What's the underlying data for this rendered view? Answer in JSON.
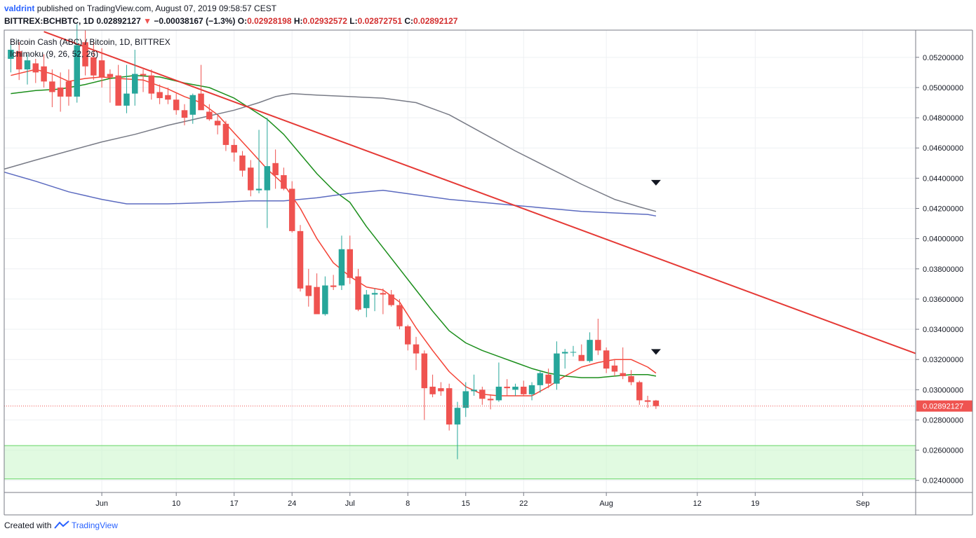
{
  "header": {
    "author": "valdrint",
    "published": "published on TradingView.com, August 07, 2019 09:58:57 CEST"
  },
  "quote": {
    "symbol": "BITTREX:BCHBTC, 1D",
    "last": "0.02892127",
    "change": "−0.00038167 (−1.3%)",
    "o_label": "O:",
    "o": "0.02928198",
    "h_label": "H:",
    "h": "0.02932572",
    "l_label": "L:",
    "l": "0.02872751",
    "c_label": "C:",
    "c": "0.02892127"
  },
  "legend": {
    "line1": "Bitcoin Cash (ABC) / Bitcoin, 1D, BITTREX",
    "line2": "Ichimoku (9, 26, 52, 26)"
  },
  "footer": {
    "created": "Created with",
    "brand": "TradingView"
  },
  "chart_data": {
    "type": "candlestick",
    "y_axis": {
      "range": [
        0.0232,
        0.0538
      ],
      "ticks": [
        "0.02400000",
        "0.02600000",
        "0.02800000",
        "0.03000000",
        "0.03200000",
        "0.03400000",
        "0.03600000",
        "0.03800000",
        "0.04000000",
        "0.04200000",
        "0.04400000",
        "0.04600000",
        "0.04800000",
        "0.05000000",
        "0.05200000"
      ],
      "last_price_label": "0.02892127"
    },
    "x_axis": {
      "tick_labels": [
        {
          "label": "Jun",
          "day": 0
        },
        {
          "label": "10",
          "day": 9
        },
        {
          "label": "17",
          "day": 16
        },
        {
          "label": "24",
          "day": 23
        },
        {
          "label": "Jul",
          "day": 30
        },
        {
          "label": "8",
          "day": 37
        },
        {
          "label": "15",
          "day": 44
        },
        {
          "label": "22",
          "day": 51
        },
        {
          "label": "Aug",
          "day": 61
        },
        {
          "label": "12",
          "day": 72
        },
        {
          "label": "19",
          "day": 79
        },
        {
          "label": "Sep",
          "day": 92
        }
      ],
      "day_range": [
        -11.8,
        98.4
      ]
    },
    "candles": [
      {
        "d": -11,
        "o": 0.0519,
        "h": 0.0532,
        "l": 0.051,
        "c": 0.0525
      },
      {
        "d": -10,
        "o": 0.0524,
        "h": 0.053,
        "l": 0.0505,
        "c": 0.0512
      },
      {
        "d": -9,
        "o": 0.0512,
        "h": 0.0522,
        "l": 0.0502,
        "c": 0.0518
      },
      {
        "d": -8,
        "o": 0.0516,
        "h": 0.0519,
        "l": 0.0503,
        "c": 0.051
      },
      {
        "d": -7,
        "o": 0.0514,
        "h": 0.0522,
        "l": 0.05,
        "c": 0.0504
      },
      {
        "d": -6,
        "o": 0.0504,
        "h": 0.0512,
        "l": 0.0487,
        "c": 0.0497
      },
      {
        "d": -5,
        "o": 0.05,
        "h": 0.051,
        "l": 0.0484,
        "c": 0.0494
      },
      {
        "d": -4,
        "o": 0.0504,
        "h": 0.0512,
        "l": 0.0488,
        "c": 0.0494
      },
      {
        "d": -3,
        "o": 0.0494,
        "h": 0.0542,
        "l": 0.049,
        "c": 0.0528
      },
      {
        "d": -2,
        "o": 0.053,
        "h": 0.0538,
        "l": 0.0508,
        "c": 0.0514
      },
      {
        "d": -1,
        "o": 0.052,
        "h": 0.053,
        "l": 0.0505,
        "c": 0.0508
      },
      {
        "d": 0,
        "o": 0.0518,
        "h": 0.0526,
        "l": 0.05,
        "c": 0.0507
      },
      {
        "d": 1,
        "o": 0.0509,
        "h": 0.0512,
        "l": 0.049,
        "c": 0.0507
      },
      {
        "d": 2,
        "o": 0.0508,
        "h": 0.0515,
        "l": 0.049,
        "c": 0.0488
      },
      {
        "d": 3,
        "o": 0.0488,
        "h": 0.0515,
        "l": 0.0483,
        "c": 0.0496
      },
      {
        "d": 4,
        "o": 0.0496,
        "h": 0.0525,
        "l": 0.0488,
        "c": 0.0509
      },
      {
        "d": 5,
        "o": 0.0509,
        "h": 0.0512,
        "l": 0.0497,
        "c": 0.0508
      },
      {
        "d": 6,
        "o": 0.0508,
        "h": 0.0512,
        "l": 0.0492,
        "c": 0.0496
      },
      {
        "d": 7,
        "o": 0.0497,
        "h": 0.0502,
        "l": 0.0489,
        "c": 0.0493
      },
      {
        "d": 8,
        "o": 0.0495,
        "h": 0.05,
        "l": 0.0489,
        "c": 0.0492
      },
      {
        "d": 9,
        "o": 0.0492,
        "h": 0.0496,
        "l": 0.0482,
        "c": 0.0485
      },
      {
        "d": 10,
        "o": 0.0485,
        "h": 0.0489,
        "l": 0.0475,
        "c": 0.048
      },
      {
        "d": 11,
        "o": 0.0482,
        "h": 0.0496,
        "l": 0.0476,
        "c": 0.0495
      },
      {
        "d": 12,
        "o": 0.0496,
        "h": 0.0515,
        "l": 0.0486,
        "c": 0.0485
      },
      {
        "d": 13,
        "o": 0.0484,
        "h": 0.0489,
        "l": 0.0478,
        "c": 0.0479
      },
      {
        "d": 14,
        "o": 0.0478,
        "h": 0.0482,
        "l": 0.0469,
        "c": 0.0475
      },
      {
        "d": 15,
        "o": 0.0476,
        "h": 0.0478,
        "l": 0.0458,
        "c": 0.0462
      },
      {
        "d": 16,
        "o": 0.0462,
        "h": 0.0466,
        "l": 0.0451,
        "c": 0.0457
      },
      {
        "d": 17,
        "o": 0.0455,
        "h": 0.0458,
        "l": 0.0441,
        "c": 0.0445
      },
      {
        "d": 18,
        "o": 0.0447,
        "h": 0.0452,
        "l": 0.0428,
        "c": 0.0432
      },
      {
        "d": 19,
        "o": 0.0432,
        "h": 0.0472,
        "l": 0.043,
        "c": 0.0433
      },
      {
        "d": 20,
        "o": 0.0432,
        "h": 0.048,
        "l": 0.0407,
        "c": 0.0448
      },
      {
        "d": 21,
        "o": 0.045,
        "h": 0.0459,
        "l": 0.0433,
        "c": 0.0442
      },
      {
        "d": 22,
        "o": 0.0442,
        "h": 0.0447,
        "l": 0.0432,
        "c": 0.0433
      },
      {
        "d": 23,
        "o": 0.0433,
        "h": 0.0438,
        "l": 0.0404,
        "c": 0.0405
      },
      {
        "d": 24,
        "o": 0.0405,
        "h": 0.0409,
        "l": 0.0365,
        "c": 0.0367
      },
      {
        "d": 25,
        "o": 0.0369,
        "h": 0.038,
        "l": 0.0355,
        "c": 0.0362
      },
      {
        "d": 26,
        "o": 0.0368,
        "h": 0.0377,
        "l": 0.035,
        "c": 0.035
      },
      {
        "d": 27,
        "o": 0.035,
        "h": 0.0375,
        "l": 0.0349,
        "c": 0.0369
      },
      {
        "d": 28,
        "o": 0.0369,
        "h": 0.0376,
        "l": 0.0366,
        "c": 0.0368
      },
      {
        "d": 29,
        "o": 0.0369,
        "h": 0.0402,
        "l": 0.0366,
        "c": 0.0393
      },
      {
        "d": 30,
        "o": 0.0393,
        "h": 0.0402,
        "l": 0.037,
        "c": 0.0374
      },
      {
        "d": 31,
        "o": 0.0375,
        "h": 0.038,
        "l": 0.0352,
        "c": 0.0353
      },
      {
        "d": 32,
        "o": 0.0354,
        "h": 0.0366,
        "l": 0.0348,
        "c": 0.0363
      },
      {
        "d": 33,
        "o": 0.0363,
        "h": 0.0367,
        "l": 0.0352,
        "c": 0.0364
      },
      {
        "d": 34,
        "o": 0.0364,
        "h": 0.0367,
        "l": 0.035,
        "c": 0.0363
      },
      {
        "d": 35,
        "o": 0.0363,
        "h": 0.0366,
        "l": 0.0355,
        "c": 0.0356
      },
      {
        "d": 36,
        "o": 0.0356,
        "h": 0.036,
        "l": 0.034,
        "c": 0.0342
      },
      {
        "d": 37,
        "o": 0.0342,
        "h": 0.0343,
        "l": 0.0326,
        "c": 0.033
      },
      {
        "d": 38,
        "o": 0.033,
        "h": 0.0335,
        "l": 0.0313,
        "c": 0.0324
      },
      {
        "d": 39,
        "o": 0.0324,
        "h": 0.0326,
        "l": 0.028,
        "c": 0.0301
      },
      {
        "d": 40,
        "o": 0.0302,
        "h": 0.031,
        "l": 0.0295,
        "c": 0.0297
      },
      {
        "d": 41,
        "o": 0.0301,
        "h": 0.0305,
        "l": 0.0296,
        "c": 0.0299
      },
      {
        "d": 42,
        "o": 0.0301,
        "h": 0.0304,
        "l": 0.0273,
        "c": 0.0277
      },
      {
        "d": 43,
        "o": 0.0277,
        "h": 0.0292,
        "l": 0.0254,
        "c": 0.0288
      },
      {
        "d": 44,
        "o": 0.0288,
        "h": 0.0305,
        "l": 0.0282,
        "c": 0.0299
      },
      {
        "d": 45,
        "o": 0.0299,
        "h": 0.031,
        "l": 0.0296,
        "c": 0.03
      },
      {
        "d": 46,
        "o": 0.03,
        "h": 0.0302,
        "l": 0.029,
        "c": 0.0294
      },
      {
        "d": 47,
        "o": 0.0294,
        "h": 0.0297,
        "l": 0.0287,
        "c": 0.0293
      },
      {
        "d": 48,
        "o": 0.0293,
        "h": 0.0318,
        "l": 0.0292,
        "c": 0.0302
      },
      {
        "d": 49,
        "o": 0.0302,
        "h": 0.0307,
        "l": 0.0296,
        "c": 0.0301
      },
      {
        "d": 50,
        "o": 0.03,
        "h": 0.0304,
        "l": 0.0296,
        "c": 0.0302
      },
      {
        "d": 51,
        "o": 0.0302,
        "h": 0.0306,
        "l": 0.0296,
        "c": 0.0297
      },
      {
        "d": 52,
        "o": 0.0297,
        "h": 0.0305,
        "l": 0.0293,
        "c": 0.0303
      },
      {
        "d": 53,
        "o": 0.0303,
        "h": 0.0313,
        "l": 0.0298,
        "c": 0.0311
      },
      {
        "d": 54,
        "o": 0.031,
        "h": 0.0314,
        "l": 0.0301,
        "c": 0.0304
      },
      {
        "d": 55,
        "o": 0.0304,
        "h": 0.0332,
        "l": 0.03,
        "c": 0.0324
      },
      {
        "d": 56,
        "o": 0.0324,
        "h": 0.0327,
        "l": 0.0314,
        "c": 0.0325
      },
      {
        "d": 57,
        "o": 0.0325,
        "h": 0.0329,
        "l": 0.0322,
        "c": 0.0325
      },
      {
        "d": 58,
        "o": 0.0323,
        "h": 0.033,
        "l": 0.032,
        "c": 0.0319
      },
      {
        "d": 59,
        "o": 0.0319,
        "h": 0.0338,
        "l": 0.0318,
        "c": 0.0333
      },
      {
        "d": 60,
        "o": 0.0333,
        "h": 0.0347,
        "l": 0.0323,
        "c": 0.0326
      },
      {
        "d": 61,
        "o": 0.0326,
        "h": 0.0328,
        "l": 0.0311,
        "c": 0.0314
      },
      {
        "d": 62,
        "o": 0.0316,
        "h": 0.032,
        "l": 0.0309,
        "c": 0.0312
      },
      {
        "d": 63,
        "o": 0.0311,
        "h": 0.0328,
        "l": 0.0307,
        "c": 0.0309
      },
      {
        "d": 64,
        "o": 0.0309,
        "h": 0.0313,
        "l": 0.0303,
        "c": 0.0305
      },
      {
        "d": 65,
        "o": 0.0305,
        "h": 0.0306,
        "l": 0.029,
        "c": 0.0293
      },
      {
        "d": 66,
        "o": 0.0293,
        "h": 0.0296,
        "l": 0.0288,
        "c": 0.0292
      },
      {
        "d": 67,
        "o": 0.0292857,
        "h": 0.0293257,
        "l": 0.0287275,
        "c": 0.0289213
      }
    ],
    "series": [
      {
        "color": "#f44336",
        "type": "line",
        "points": [
          [
            -11,
            0.0508
          ],
          [
            -8,
            0.0512
          ],
          [
            -6,
            0.0509
          ],
          [
            -4,
            0.0504
          ],
          [
            -2,
            0.0506
          ],
          [
            0,
            0.0507
          ],
          [
            2,
            0.0506
          ],
          [
            5,
            0.0505
          ],
          [
            8,
            0.0499
          ],
          [
            10,
            0.0494
          ],
          [
            12,
            0.049
          ],
          [
            14,
            0.0482
          ],
          [
            16,
            0.047
          ],
          [
            18,
            0.0458
          ],
          [
            20,
            0.0446
          ],
          [
            22,
            0.0436
          ],
          [
            24,
            0.042
          ],
          [
            26,
            0.04
          ],
          [
            28,
            0.0384
          ],
          [
            30,
            0.0375
          ],
          [
            32,
            0.0368
          ],
          [
            34,
            0.0366
          ],
          [
            36,
            0.0358
          ],
          [
            38,
            0.0341
          ],
          [
            40,
            0.0326
          ],
          [
            42,
            0.0312
          ],
          [
            44,
            0.0302
          ],
          [
            46,
            0.0297
          ],
          [
            48,
            0.0296
          ],
          [
            50,
            0.0296
          ],
          [
            52,
            0.0296
          ],
          [
            54,
            0.0302
          ],
          [
            56,
            0.0309
          ],
          [
            58,
            0.0315
          ],
          [
            60,
            0.0318
          ],
          [
            62,
            0.032
          ],
          [
            64,
            0.032
          ],
          [
            66,
            0.0315
          ],
          [
            67,
            0.0311
          ]
        ]
      },
      {
        "color": "#1b8e1b",
        "type": "line",
        "points": [
          [
            -11,
            0.0496
          ],
          [
            -8,
            0.0498
          ],
          [
            -5,
            0.0499
          ],
          [
            -2,
            0.0502
          ],
          [
            1,
            0.0506
          ],
          [
            4,
            0.0508
          ],
          [
            7,
            0.0507
          ],
          [
            10,
            0.0503
          ],
          [
            13,
            0.05
          ],
          [
            16,
            0.0493
          ],
          [
            18,
            0.0486
          ],
          [
            20,
            0.0479
          ],
          [
            22,
            0.0469
          ],
          [
            24,
            0.0456
          ],
          [
            26,
            0.0443
          ],
          [
            28,
            0.0432
          ],
          [
            30,
            0.0424
          ],
          [
            32,
            0.0408
          ],
          [
            34,
            0.0394
          ],
          [
            36,
            0.038
          ],
          [
            38,
            0.0366
          ],
          [
            40,
            0.0352
          ],
          [
            42,
            0.0339
          ],
          [
            44,
            0.0331
          ],
          [
            46,
            0.0326
          ],
          [
            48,
            0.0322
          ],
          [
            50,
            0.0318
          ],
          [
            52,
            0.0314
          ],
          [
            54,
            0.0311
          ],
          [
            56,
            0.0309
          ],
          [
            58,
            0.0308
          ],
          [
            60,
            0.0308
          ],
          [
            62,
            0.0309
          ],
          [
            64,
            0.031
          ],
          [
            66,
            0.031
          ],
          [
            67,
            0.0309
          ]
        ]
      },
      {
        "color": "#787b86",
        "type": "line",
        "points": [
          [
            -11.8,
            0.0446
          ],
          [
            -8,
            0.0452
          ],
          [
            -4,
            0.0458
          ],
          [
            0,
            0.0464
          ],
          [
            4,
            0.0469
          ],
          [
            8,
            0.0475
          ],
          [
            12,
            0.048
          ],
          [
            16,
            0.0485
          ],
          [
            19,
            0.049
          ],
          [
            21,
            0.0494
          ],
          [
            23,
            0.0496
          ],
          [
            26,
            0.0495
          ],
          [
            30,
            0.0494
          ],
          [
            34,
            0.0493
          ],
          [
            38,
            0.049
          ],
          [
            42,
            0.0482
          ],
          [
            46,
            0.047
          ],
          [
            50,
            0.0458
          ],
          [
            54,
            0.0447
          ],
          [
            58,
            0.0436
          ],
          [
            62,
            0.0426
          ],
          [
            65,
            0.0421
          ],
          [
            67,
            0.0418
          ]
        ]
      },
      {
        "color": "#5c6bc0",
        "type": "line",
        "points": [
          [
            -11.8,
            0.0444
          ],
          [
            -8,
            0.0438
          ],
          [
            -4,
            0.0431
          ],
          [
            0,
            0.0426
          ],
          [
            3,
            0.0423
          ],
          [
            8,
            0.0423
          ],
          [
            14,
            0.0424
          ],
          [
            18,
            0.0425
          ],
          [
            22,
            0.0425
          ],
          [
            26,
            0.0427
          ],
          [
            30,
            0.043
          ],
          [
            34,
            0.0432
          ],
          [
            38,
            0.0429
          ],
          [
            42,
            0.0426
          ],
          [
            46,
            0.0424
          ],
          [
            50,
            0.0422
          ],
          [
            54,
            0.042
          ],
          [
            58,
            0.0418
          ],
          [
            62,
            0.0417
          ],
          [
            66,
            0.0416
          ],
          [
            67,
            0.0415
          ]
        ]
      },
      {
        "color": "#e53935",
        "type": "trendline",
        "points": [
          [
            -7,
            0.0537
          ],
          [
            98.4,
            0.0324
          ]
        ]
      }
    ],
    "support_zone": {
      "from": 0.0241,
      "to": 0.0263,
      "color": "#c8f5c8"
    },
    "markers": [
      {
        "type": "down-arrow",
        "d": 67,
        "y": 0.0437
      },
      {
        "type": "down-arrow",
        "d": 67,
        "y": 0.0325
      }
    ],
    "colors": {
      "up": "#26a69a",
      "down": "#ef5350"
    }
  }
}
